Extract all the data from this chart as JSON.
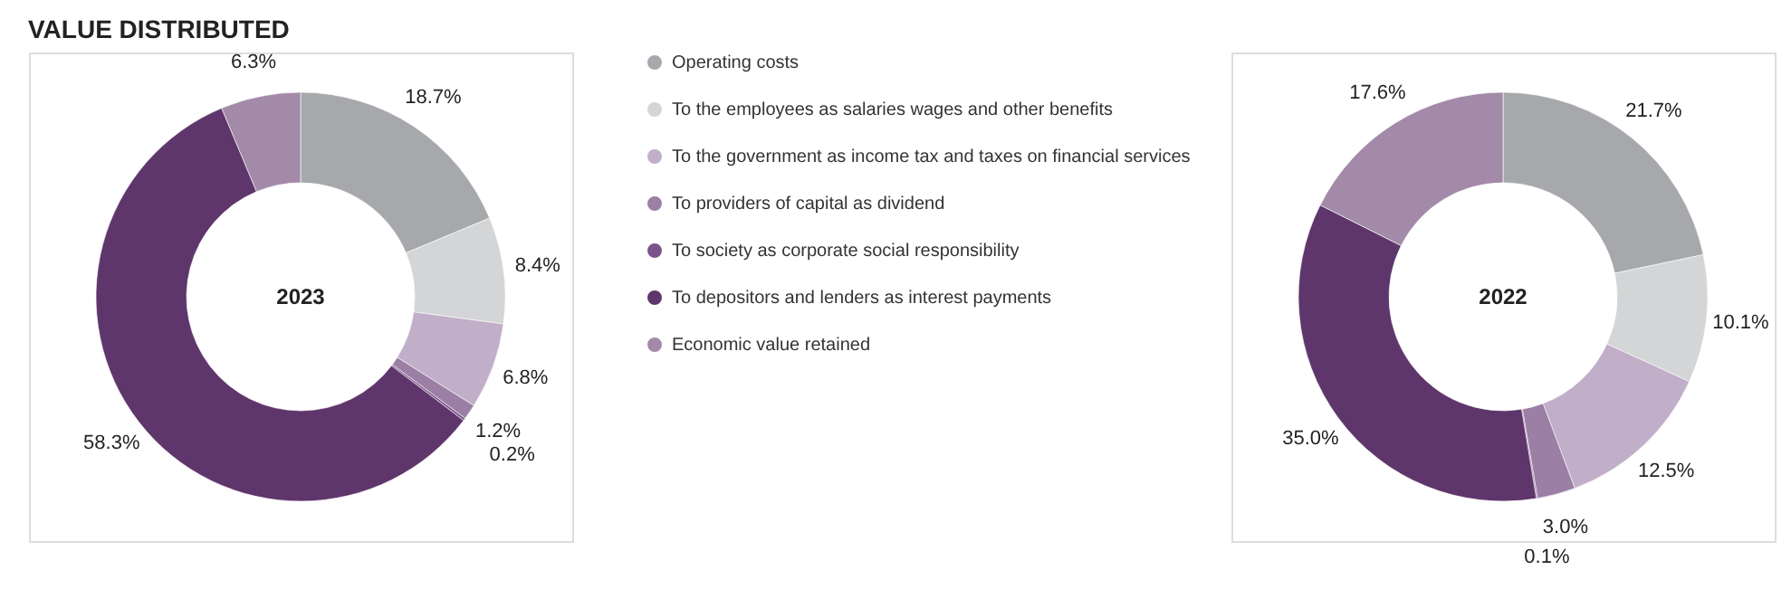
{
  "chart_data": [
    {
      "type": "donut",
      "title": "VALUE DISTRIBUTED",
      "annotations": [
        "2023"
      ],
      "legend": "right",
      "categories": [
        "Operating costs",
        "To the employees as salaries wages and other benefits",
        "To the government as income tax and taxes on financial services",
        "To providers of capital as dividend",
        "To society as corporate social responsibility",
        "To depositors and lenders as interest payments",
        "Economic value retained"
      ],
      "values": [
        18.7,
        8.4,
        6.8,
        1.2,
        0.2,
        58.3,
        6.3
      ],
      "value_labels": [
        "18.7%",
        "8.4%",
        "6.8%",
        "1.2%",
        "0.2%",
        "58.3%",
        "6.3%"
      ],
      "colors": [
        "#a7a8ab",
        "#d4d5d7",
        "#c1aec8",
        "#9b7fa5",
        "#7b5589",
        "#5f366b",
        "#a38aa9"
      ]
    },
    {
      "type": "donut",
      "annotations": [
        "2022"
      ],
      "values": [
        21.7,
        10.1,
        12.5,
        3.0,
        0.1,
        35.0,
        17.6
      ],
      "value_labels": [
        "21.7%",
        "10.1%",
        "12.5%",
        "3.0%",
        "0.1%",
        "35.0%",
        "17.6%"
      ],
      "colors": [
        "#a7a8ab",
        "#d4d5d7",
        "#c1aec8",
        "#9b7fa5",
        "#7b5589",
        "#5f366b",
        "#a38aa9"
      ]
    }
  ]
}
